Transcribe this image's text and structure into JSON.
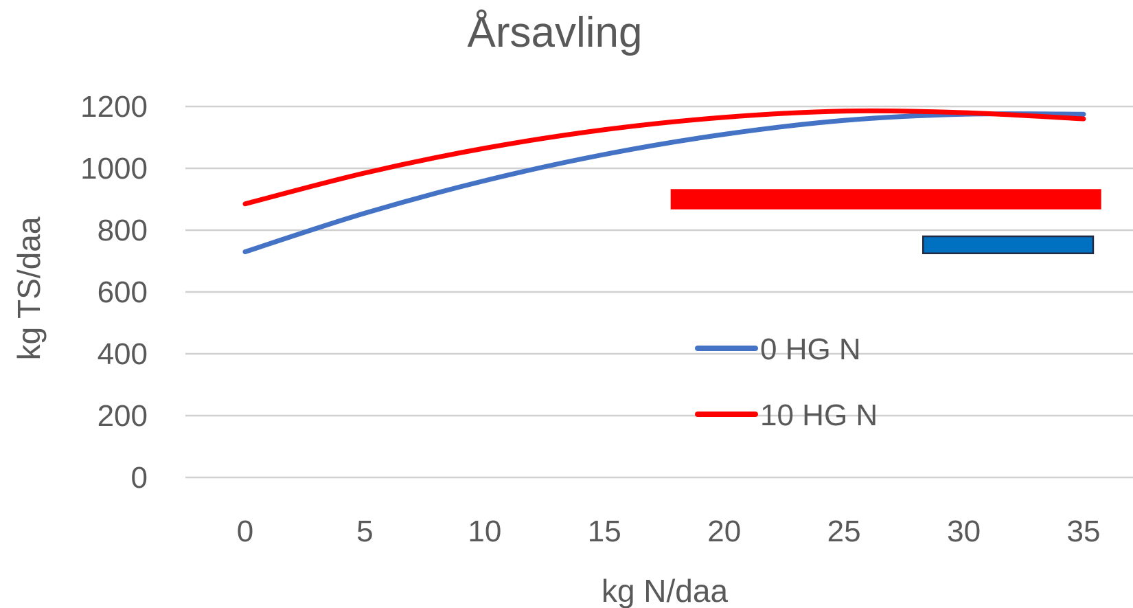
{
  "chart_data": {
    "type": "line",
    "title": "Årsavling",
    "xlabel": "kg N/daa",
    "ylabel": "kg TS/daa",
    "x": [
      0,
      5,
      10,
      15,
      20,
      25,
      30,
      35
    ],
    "xticks": [
      "0",
      "5",
      "10",
      "15",
      "20",
      "25",
      "30",
      "35"
    ],
    "yticks": [
      "0",
      "200",
      "400",
      "600",
      "800",
      "1000",
      "1200"
    ],
    "ylim": [
      0,
      1200
    ],
    "grid": true,
    "legend_position": "center",
    "series": [
      {
        "name": "0 HG N",
        "color": "#4472c4",
        "values": [
          730,
          855,
          960,
          1045,
          1110,
          1155,
          1175,
          1175
        ]
      },
      {
        "name": "10 HG N",
        "color": "#ff0000",
        "values": [
          885,
          985,
          1065,
          1125,
          1165,
          1185,
          1180,
          1160
        ]
      }
    ],
    "bars": [
      {
        "color": "#ff0000",
        "border": "#ff0000",
        "x_start": 17.8,
        "x_end": 35.7,
        "y_low": 870,
        "y_high": 930
      },
      {
        "color": "#0070c0",
        "border": "#1f2a44",
        "x_start": 28.3,
        "x_end": 35.4,
        "y_low": 725,
        "y_high": 780
      }
    ]
  }
}
